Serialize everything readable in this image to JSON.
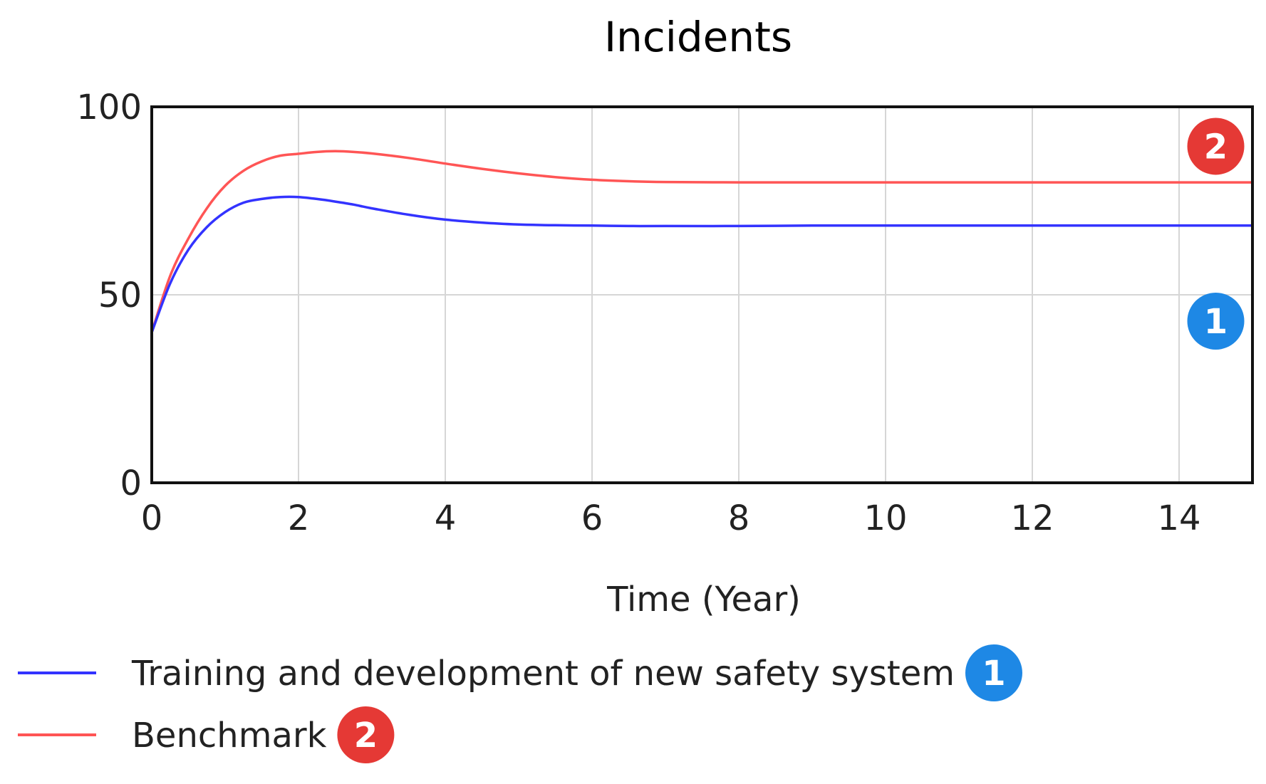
{
  "chart_data": {
    "type": "line",
    "title": "Incidents",
    "xlabel": "Time (Year)",
    "ylabel": "",
    "xlim": [
      0,
      15
    ],
    "ylim": [
      0,
      100
    ],
    "x_ticks": [
      "0",
      "2",
      "4",
      "6",
      "8",
      "10",
      "12",
      "14"
    ],
    "y_ticks": [
      "0",
      "50",
      "100"
    ],
    "grid": true,
    "legend_position": "bottom-left",
    "x": [
      0,
      0.25,
      0.5,
      0.75,
      1,
      1.25,
      1.5,
      1.75,
      2,
      2.25,
      2.5,
      2.75,
      3,
      3.5,
      4,
      4.5,
      5,
      5.5,
      6,
      6.5,
      7,
      8,
      9,
      10,
      11,
      12,
      13,
      14,
      15
    ],
    "series": [
      {
        "name": "Training and development of new safety system",
        "marker": "1",
        "color": "#3333ff",
        "marker_color": "#1e88e5",
        "values": [
          40,
          53,
          62,
          68,
          72,
          74.5,
          75.5,
          76,
          76,
          75.5,
          74.8,
          74,
          73,
          71.3,
          70,
          69.2,
          68.7,
          68.5,
          68.4,
          68.3,
          68.3,
          68.3,
          68.4,
          68.4,
          68.4,
          68.4,
          68.4,
          68.4,
          68.4
        ]
      },
      {
        "name": "Benchmark",
        "marker": "2",
        "color": "#ff5555",
        "marker_color": "#e53935",
        "values": [
          40,
          55,
          65,
          73,
          79,
          83,
          85.5,
          87,
          87.5,
          88,
          88.2,
          88,
          87.6,
          86.4,
          84.9,
          83.5,
          82.3,
          81.3,
          80.6,
          80.2,
          80,
          79.9,
          79.9,
          79.9,
          79.9,
          79.9,
          79.9,
          79.9,
          79.9
        ]
      }
    ]
  }
}
